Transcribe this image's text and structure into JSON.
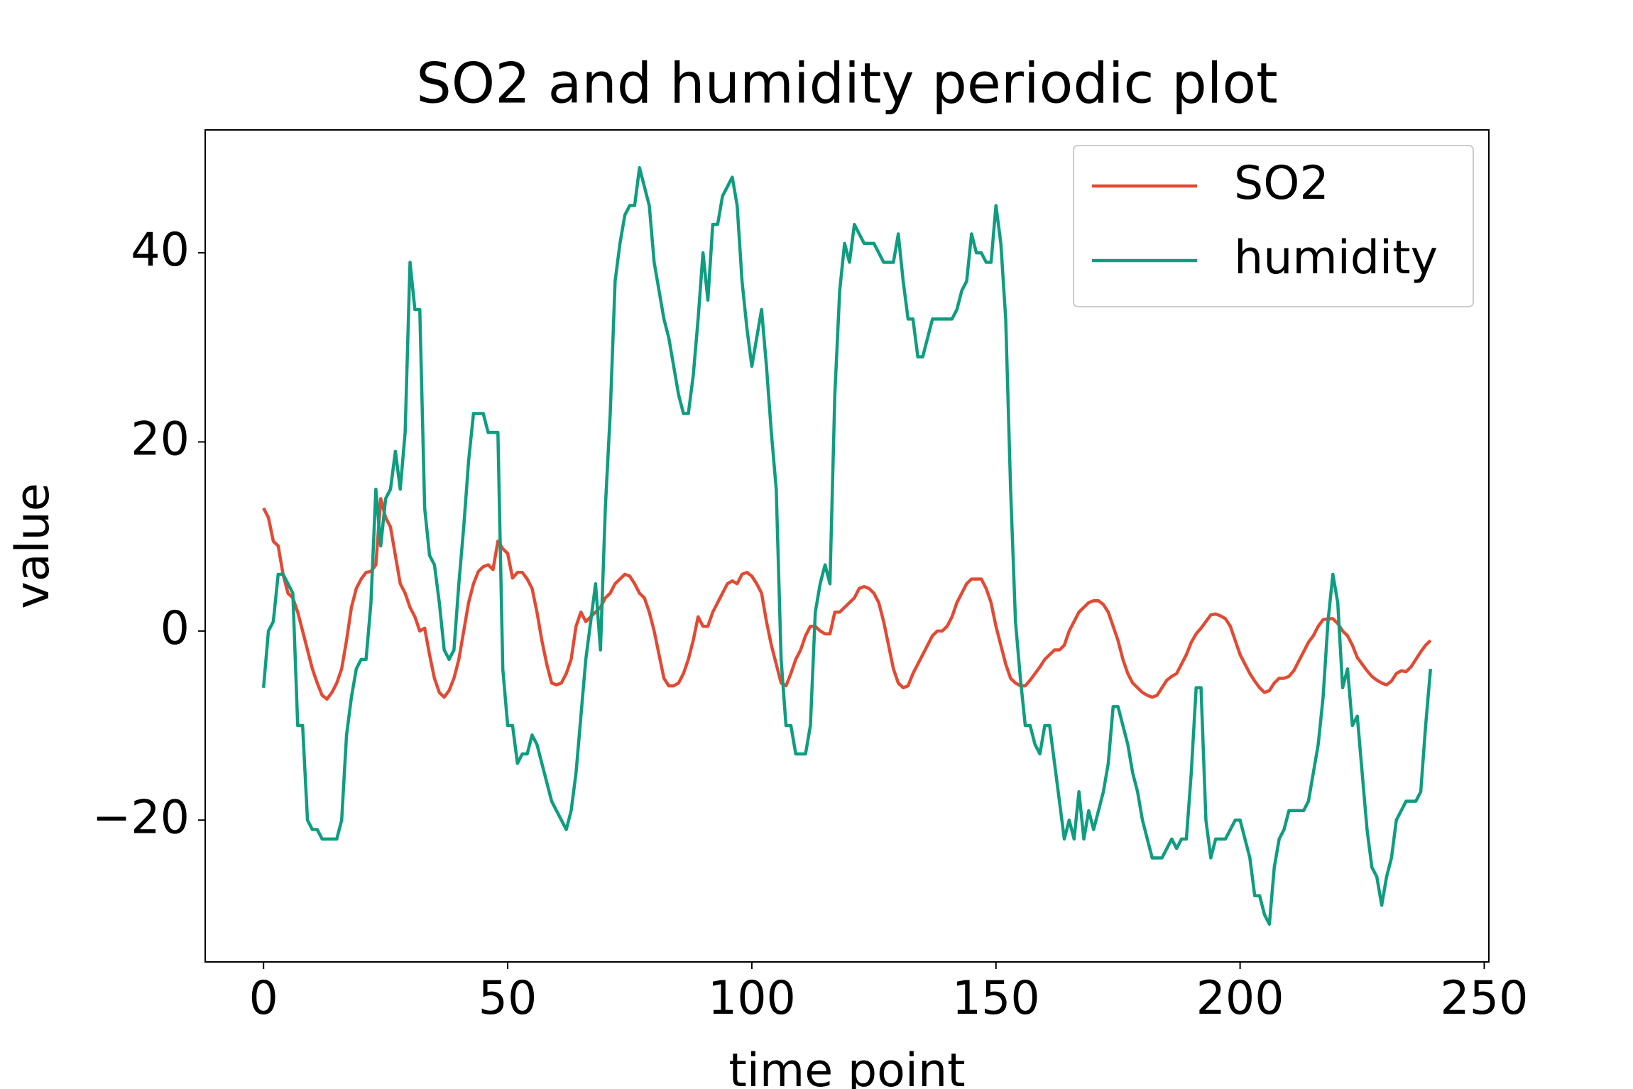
{
  "chart_data": {
    "type": "line",
    "title": "SO2 and humidity periodic plot",
    "xlabel": "time point",
    "ylabel": "value",
    "x": [
      0,
      1,
      2,
      3,
      4,
      5,
      6,
      7,
      8,
      9,
      10,
      11,
      12,
      13,
      14,
      15,
      16,
      17,
      18,
      19,
      20,
      21,
      22,
      23,
      24,
      25,
      26,
      27,
      28,
      29,
      30,
      31,
      32,
      33,
      34,
      35,
      36,
      37,
      38,
      39,
      40,
      41,
      42,
      43,
      44,
      45,
      46,
      47,
      48,
      49,
      50,
      51,
      52,
      53,
      54,
      55,
      56,
      57,
      58,
      59,
      60,
      61,
      62,
      63,
      64,
      65,
      66,
      67,
      68,
      69,
      70,
      71,
      72,
      73,
      74,
      75,
      76,
      77,
      78,
      79,
      80,
      81,
      82,
      83,
      84,
      85,
      86,
      87,
      88,
      89,
      90,
      91,
      92,
      93,
      94,
      95,
      96,
      97,
      98,
      99,
      100,
      101,
      102,
      103,
      104,
      105,
      106,
      107,
      108,
      109,
      110,
      111,
      112,
      113,
      114,
      115,
      116,
      117,
      118,
      119,
      120,
      121,
      122,
      123,
      124,
      125,
      126,
      127,
      128,
      129,
      130,
      131,
      132,
      133,
      134,
      135,
      136,
      137,
      138,
      139,
      140,
      141,
      142,
      143,
      144,
      145,
      146,
      147,
      148,
      149,
      150,
      151,
      152,
      153,
      154,
      155,
      156,
      157,
      158,
      159,
      160,
      161,
      162,
      163,
      164,
      165,
      166,
      167,
      168,
      169,
      170,
      171,
      172,
      173,
      174,
      175,
      176,
      177,
      178,
      179,
      180,
      181,
      182,
      183,
      184,
      185,
      186,
      187,
      188,
      189,
      190,
      191,
      192,
      193,
      194,
      195,
      196,
      197,
      198,
      199,
      200,
      201,
      202,
      203,
      204,
      205,
      206,
      207,
      208,
      209,
      210,
      211,
      212,
      213,
      214,
      215,
      216,
      217,
      218,
      219,
      220,
      221,
      222,
      223,
      224,
      225,
      226,
      227,
      228,
      229,
      230,
      231,
      232,
      233,
      234,
      235,
      236,
      237,
      238,
      239
    ],
    "series": [
      {
        "name": "SO2",
        "color": "#e24a33",
        "values": [
          13,
          12,
          9.5,
          9,
          6,
          4,
          3.5,
          2,
          0,
          -2,
          -4,
          -5.5,
          -6.8,
          -7.2,
          -6.5,
          -5.5,
          -4,
          -1,
          2.5,
          4.5,
          5.5,
          6.2,
          6.3,
          7,
          14,
          12,
          11,
          8,
          5,
          4,
          2.5,
          1.5,
          0,
          0.3,
          -2.5,
          -5,
          -6.5,
          -7,
          -6.3,
          -5,
          -3,
          0,
          3,
          5,
          6.3,
          6.8,
          7,
          6.5,
          9.5,
          8.7,
          8.2,
          5.6,
          6.2,
          6.2,
          5.5,
          4.5,
          2,
          -1,
          -3.5,
          -5.5,
          -5.7,
          -5.5,
          -4.5,
          -3,
          0.5,
          2,
          1,
          1.5,
          2,
          2.5,
          3.5,
          4,
          5,
          5.5,
          6,
          5.8,
          5,
          4,
          3.5,
          2,
          0,
          -2.5,
          -5,
          -5.8,
          -5.8,
          -5.5,
          -4.5,
          -3,
          -1,
          1.5,
          0.5,
          0.5,
          2,
          3,
          4,
          5,
          5.3,
          5,
          6,
          6.2,
          5.8,
          5,
          4,
          1,
          -1.5,
          -3.5,
          -5.5,
          -5.8,
          -4.5,
          -3,
          -2,
          -0.5,
          0.5,
          0.5,
          0,
          -0.3,
          -0.3,
          2,
          2,
          2.5,
          3,
          3.5,
          4.5,
          4.7,
          4.5,
          4,
          3,
          1,
          -1.5,
          -4,
          -5.5,
          -6,
          -5.8,
          -4.5,
          -3.5,
          -2.5,
          -1.5,
          -0.5,
          0,
          0,
          0.5,
          1.5,
          3,
          4,
          5,
          5.5,
          5.5,
          5.5,
          4.5,
          3,
          0.5,
          -1.5,
          -3.5,
          -5,
          -5.5,
          -5.8,
          -5.8,
          -5.2,
          -4.5,
          -3.8,
          -3,
          -2.5,
          -2,
          -2,
          -1.5,
          0,
          1,
          2,
          2.5,
          3,
          3.2,
          3.2,
          2.8,
          2,
          0.5,
          -1,
          -3,
          -4.5,
          -5.5,
          -6,
          -6.5,
          -6.8,
          -7,
          -6.8,
          -6,
          -5.2,
          -4.8,
          -4.5,
          -3.5,
          -2.5,
          -1.2,
          -0.3,
          0.3,
          1,
          1.7,
          1.8,
          1.6,
          1.3,
          0.5,
          -1,
          -2.5,
          -3.5,
          -4.5,
          -5.3,
          -6,
          -6.5,
          -6.3,
          -5.5,
          -5,
          -5,
          -4.8,
          -4.2,
          -3.2,
          -2.2,
          -1.2,
          -0.5,
          0.5,
          1.2,
          1.3,
          1.3,
          0.8,
          0,
          -0.5,
          -1.5,
          -2.8,
          -3.5,
          -4.2,
          -4.8,
          -5.2,
          -5.5,
          -5.7,
          -5.3,
          -4.5,
          -4.2,
          -4.3,
          -3.8,
          -3,
          -2.2,
          -1.5,
          -1
        ]
      },
      {
        "name": "humidity",
        "color": "#0f9d80",
        "values": [
          -6,
          0,
          1,
          6,
          6,
          5,
          4,
          -10,
          -10,
          -20,
          -21,
          -21,
          -22,
          -22,
          -22,
          -22,
          -20,
          -11,
          -7,
          -4,
          -3,
          -3,
          3,
          15,
          9,
          14,
          15,
          19,
          15,
          21,
          39,
          34,
          34,
          13,
          8,
          7,
          3,
          -2,
          -3,
          -2,
          5,
          11,
          18,
          23,
          23,
          23,
          21,
          21,
          21,
          -4,
          -10,
          -10,
          -14,
          -13,
          -13,
          -11,
          -12,
          -14,
          -16,
          -18,
          -19,
          -20,
          -21,
          -19,
          -15,
          -9,
          -3,
          1,
          5,
          -2,
          13,
          23,
          37,
          41,
          44,
          45,
          45,
          49,
          47,
          45,
          39,
          36,
          33,
          31,
          28,
          25,
          23,
          23,
          27,
          33,
          40,
          35,
          43,
          43,
          46,
          47,
          48,
          45,
          37,
          32,
          28,
          31,
          34,
          28,
          21,
          15,
          -3,
          -10,
          -10,
          -13,
          -13,
          -13,
          -10,
          2,
          5,
          7,
          5,
          25,
          36,
          41,
          39,
          43,
          42,
          41,
          41,
          41,
          40,
          39,
          39,
          39,
          42,
          37,
          33,
          33,
          29,
          29,
          31,
          33,
          33,
          33,
          33,
          33,
          34,
          36,
          37,
          42,
          40,
          40,
          39,
          39,
          45,
          41,
          33,
          15,
          1,
          -5,
          -10,
          -10,
          -12,
          -13,
          -10,
          -10,
          -14,
          -18,
          -22,
          -20,
          -22,
          -17,
          -22,
          -19,
          -21,
          -19,
          -17,
          -14,
          -8,
          -8,
          -10,
          -12,
          -15,
          -17,
          -20,
          -22,
          -24,
          -24,
          -24,
          -23,
          -22,
          -23,
          -22,
          -22,
          -15,
          -6,
          -6,
          -20,
          -24,
          -22,
          -22,
          -22,
          -21,
          -20,
          -20,
          -22,
          -24,
          -28,
          -28,
          -30,
          -31,
          -25,
          -22,
          -21,
          -19,
          -19,
          -19,
          -19,
          -18,
          -15,
          -12,
          -7,
          1,
          6,
          3,
          -6,
          -4,
          -10,
          -9,
          -15,
          -21,
          -25,
          -26,
          -29,
          -26,
          -24,
          -20,
          -19,
          -18,
          -18,
          -18,
          -17,
          -10,
          -4
        ]
      }
    ],
    "xlim": [
      -11.95,
      250.95
    ],
    "xticks": [
      0,
      50,
      100,
      150,
      200,
      250
    ],
    "ylim": [
      -35,
      53
    ],
    "yticks": [
      {
        "value": -20,
        "label": "−20"
      },
      0,
      20,
      40
    ],
    "grid": false,
    "legend": "upper right"
  }
}
